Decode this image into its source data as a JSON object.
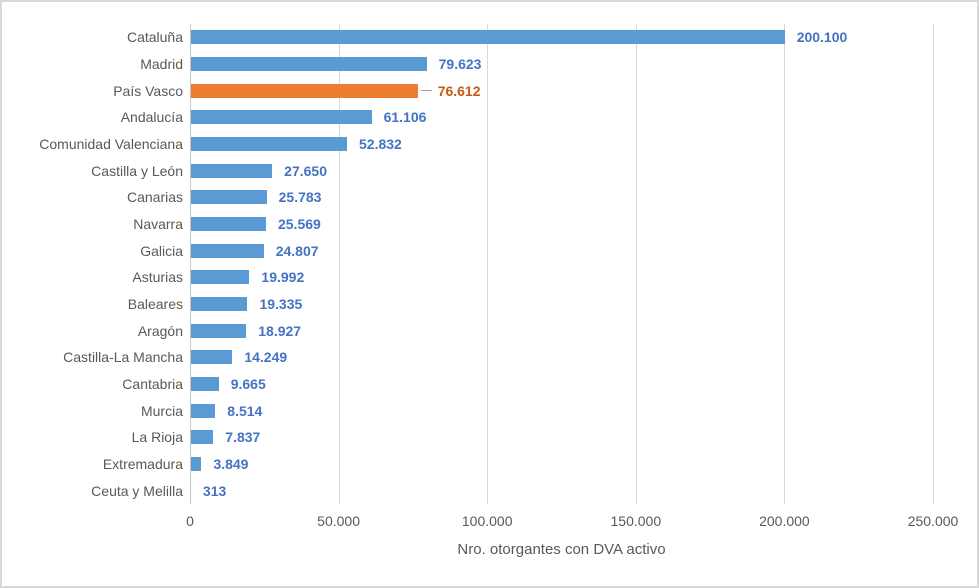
{
  "chart_data": {
    "type": "bar",
    "orientation": "horizontal",
    "title": "",
    "xlabel": "Nro. otorgantes con DVA activo",
    "ylabel": "",
    "xlim": [
      0,
      250000
    ],
    "grid": "vertical",
    "legend": "none",
    "categories": [
      "Cataluña",
      "Madrid",
      "País Vasco",
      "Andalucía",
      "Comunidad Valenciana",
      "Castilla y León",
      "Canarias",
      "Navarra",
      "Galicia",
      "Asturias",
      "Baleares",
      "Aragón",
      "Castilla-La Mancha",
      "Cantabria",
      "Murcia",
      "La Rioja",
      "Extremadura",
      "Ceuta y Melilla"
    ],
    "values": [
      200100,
      79623,
      76612,
      61106,
      52832,
      27650,
      25783,
      25569,
      24807,
      19992,
      19335,
      18927,
      14249,
      9665,
      8514,
      7837,
      3849,
      313
    ],
    "value_labels": [
      "200.100",
      "79.623",
      "76.612",
      "61.106",
      "52.832",
      "27.650",
      "25.783",
      "25.569",
      "24.807",
      "19.992",
      "19.335",
      "18.927",
      "14.249",
      "9.665",
      "8.514",
      "7.837",
      "3.849",
      "313"
    ],
    "highlight_index": 2,
    "x_ticks": [
      "0",
      "50.000",
      "100.000",
      "150.000",
      "200.000",
      "250.000"
    ],
    "colors": {
      "bar": "#5b9bd5",
      "bar_highlight": "#ed7d31",
      "value_label": "#4472c4",
      "value_label_highlight": "#c55a11",
      "axis_text": "#595959",
      "gridline": "#d9d9d9"
    }
  }
}
